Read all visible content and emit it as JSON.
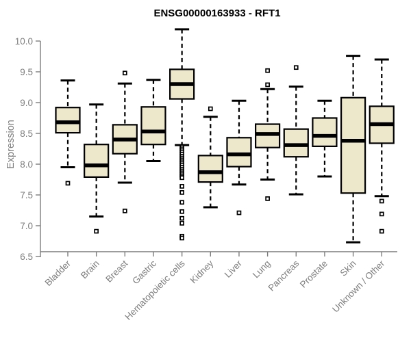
{
  "chart_data": {
    "type": "boxplot",
    "title": "ENSG00000163933 - RFT1",
    "ylabel": "Expression",
    "xlabel": "",
    "ylim": [
      6.5,
      10.0
    ],
    "yticks": [
      6.5,
      7.0,
      7.5,
      8.0,
      8.5,
      9.0,
      9.5,
      10.0
    ],
    "grid": false,
    "legend": "none",
    "categories": [
      "Bladder",
      "Brain",
      "Breast",
      "Gastric",
      "Hematopoietic cells",
      "Kidney",
      "Liver",
      "Lung",
      "Pancreas",
      "Prostate",
      "Skin",
      "Unknown / Other"
    ],
    "series": [
      {
        "name": "Bladder",
        "whisker_low": 7.95,
        "q1": 8.51,
        "median": 8.68,
        "q3": 8.92,
        "whisker_high": 9.36,
        "outliers": [
          7.69
        ]
      },
      {
        "name": "Brain",
        "whisker_low": 7.15,
        "q1": 7.79,
        "median": 7.98,
        "q3": 8.32,
        "whisker_high": 8.97,
        "outliers": [
          6.91
        ]
      },
      {
        "name": "Breast",
        "whisker_low": 7.7,
        "q1": 8.17,
        "median": 8.4,
        "q3": 8.64,
        "whisker_high": 9.31,
        "outliers": [
          9.48,
          7.24
        ]
      },
      {
        "name": "Gastric",
        "whisker_low": 8.05,
        "q1": 8.32,
        "median": 8.53,
        "q3": 8.93,
        "whisker_high": 9.37,
        "outliers": []
      },
      {
        "name": "Hematopoietic cells",
        "whisker_low": 8.31,
        "q1": 9.06,
        "median": 9.3,
        "q3": 9.54,
        "whisker_high": 10.19,
        "outliers": [
          8.28,
          8.25,
          8.22,
          8.19,
          8.16,
          8.13,
          8.1,
          8.07,
          8.04,
          8.01,
          7.98,
          7.95,
          7.92,
          7.89,
          7.86,
          7.83,
          7.8,
          7.78,
          7.64,
          7.54,
          7.38,
          7.23,
          7.12,
          7.04,
          6.83,
          6.8
        ]
      },
      {
        "name": "Kidney",
        "whisker_low": 7.3,
        "q1": 7.71,
        "median": 7.87,
        "q3": 8.14,
        "whisker_high": 8.77,
        "outliers": [
          8.9
        ]
      },
      {
        "name": "Liver",
        "whisker_low": 7.67,
        "q1": 7.96,
        "median": 8.16,
        "q3": 8.43,
        "whisker_high": 9.03,
        "outliers": [
          7.21
        ]
      },
      {
        "name": "Lung",
        "whisker_low": 7.75,
        "q1": 8.27,
        "median": 8.49,
        "q3": 8.65,
        "whisker_high": 9.22,
        "outliers": [
          9.52,
          9.29,
          7.44
        ]
      },
      {
        "name": "Pancreas",
        "whisker_low": 7.51,
        "q1": 8.12,
        "median": 8.31,
        "q3": 8.57,
        "whisker_high": 9.26,
        "outliers": [
          9.57
        ]
      },
      {
        "name": "Prostate",
        "whisker_low": 7.8,
        "q1": 8.29,
        "median": 8.46,
        "q3": 8.75,
        "whisker_high": 9.03,
        "outliers": []
      },
      {
        "name": "Skin",
        "whisker_low": 6.73,
        "q1": 7.53,
        "median": 8.38,
        "q3": 9.08,
        "whisker_high": 9.76,
        "outliers": []
      },
      {
        "name": "Unknown / Other",
        "whisker_low": 7.48,
        "q1": 8.34,
        "median": 8.65,
        "q3": 8.94,
        "whisker_high": 9.7,
        "outliers": [
          7.4,
          7.19,
          6.91
        ]
      }
    ],
    "colors": {
      "box_fill": "#ede7cb",
      "box_border": "#000000",
      "median": "#000000",
      "whisker": "#000000",
      "axis": "#7d7d7d",
      "tick_text": "#7d7d7d",
      "title_text": "#000000",
      "background": "#ffffff"
    }
  }
}
